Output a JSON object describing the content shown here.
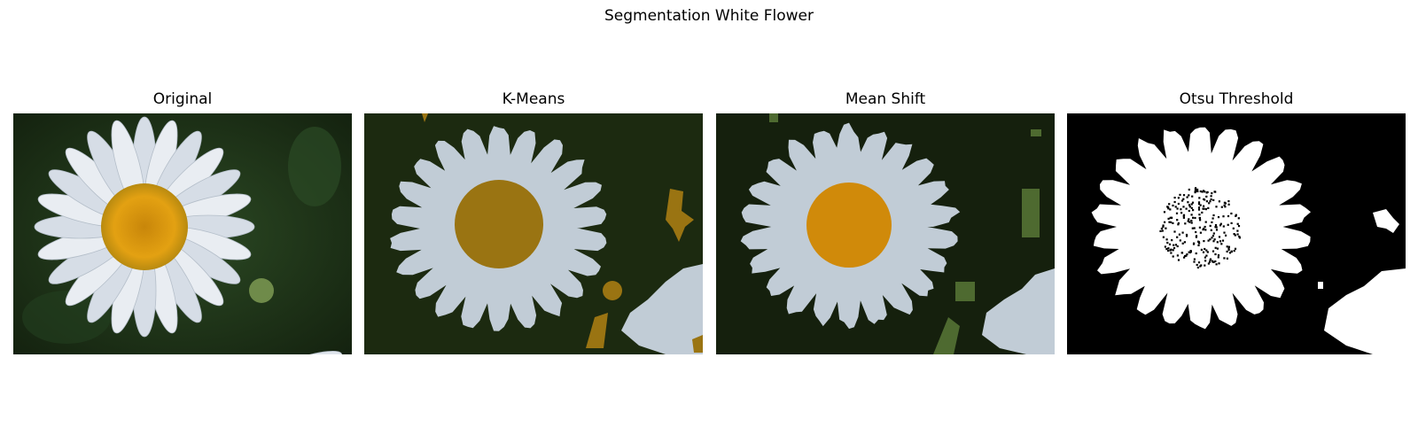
{
  "figure": {
    "title": "Segmentation White Flower",
    "panels": [
      {
        "title": "Original"
      },
      {
        "title": "K-Means"
      },
      {
        "title": "Mean Shift"
      },
      {
        "title": "Otsu Threshold"
      }
    ]
  },
  "colors": {
    "background_dark": "#1c2a10",
    "petal": "#c1ccd6",
    "kmeans_center": "#9a7412",
    "meanshift_center": "#d08a0a",
    "meanshift_leaf": "#4e6a30",
    "otsu_fg": "#ffffff",
    "otsu_bg": "#000000"
  }
}
